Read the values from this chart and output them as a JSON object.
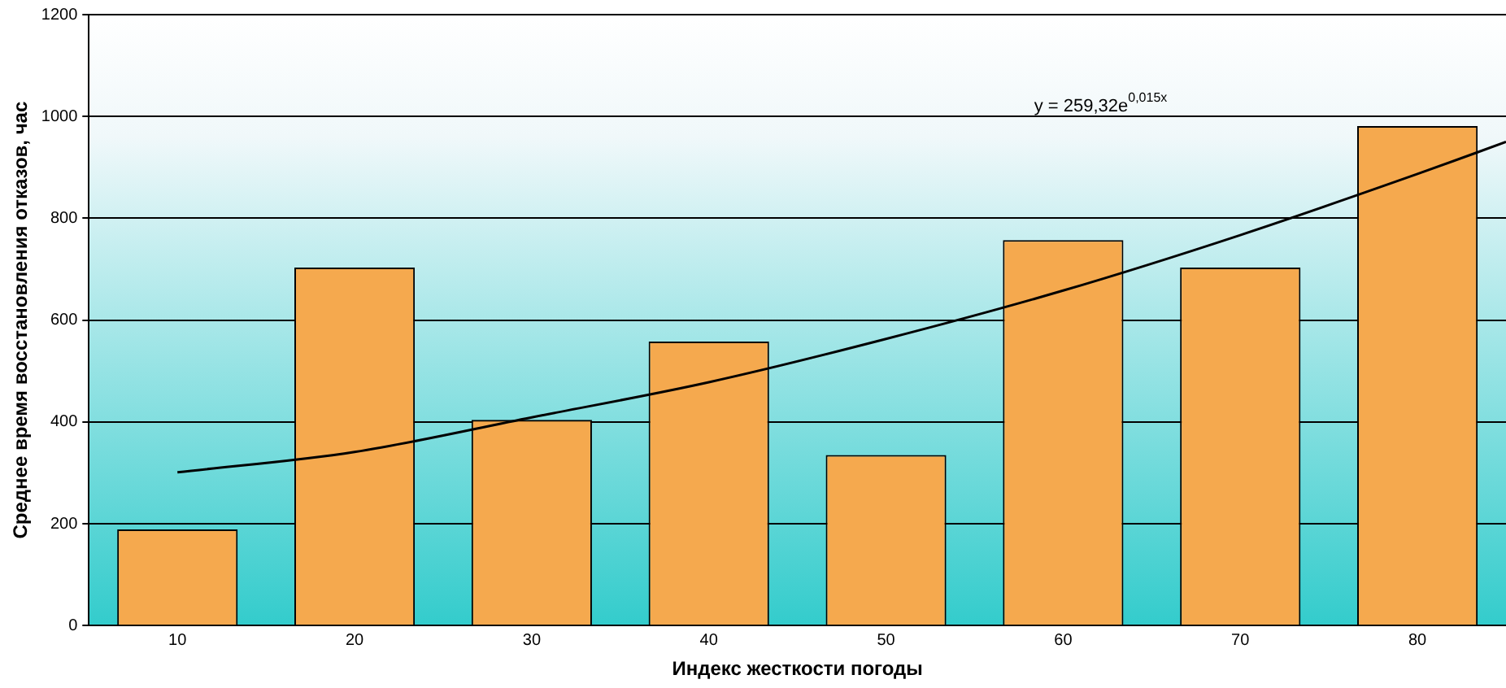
{
  "chart_data": {
    "type": "bar",
    "xlabel": "Индекс жесткости погоды",
    "ylabel": "Среднее время восстановления отказов, час",
    "x": [
      10,
      20,
      30,
      40,
      50,
      60,
      70,
      80
    ],
    "xlim": [
      5,
      85
    ],
    "xticks": [
      10,
      20,
      30,
      40,
      50,
      60,
      70,
      80
    ],
    "ylim": [
      0,
      1200
    ],
    "yticks": [
      0,
      200,
      400,
      600,
      800,
      1000,
      1200
    ],
    "grid": "y",
    "legend": false,
    "series": [
      {
        "color": "#f5a94e",
        "values": [
          189,
          703,
          404,
          558,
          335,
          757,
          703,
          981
        ]
      },
      {
        "type": "line",
        "color": "#000000",
        "x": [
          10,
          20,
          30,
          40,
          50,
          60,
          70,
          80,
          85
        ],
        "values": [
          301,
          341,
          409,
          478,
          563,
          658,
          767,
          887,
          950
        ]
      }
    ],
    "annotations": [
      "y = 259,32e$^{0,015x}$"
    ]
  }
}
